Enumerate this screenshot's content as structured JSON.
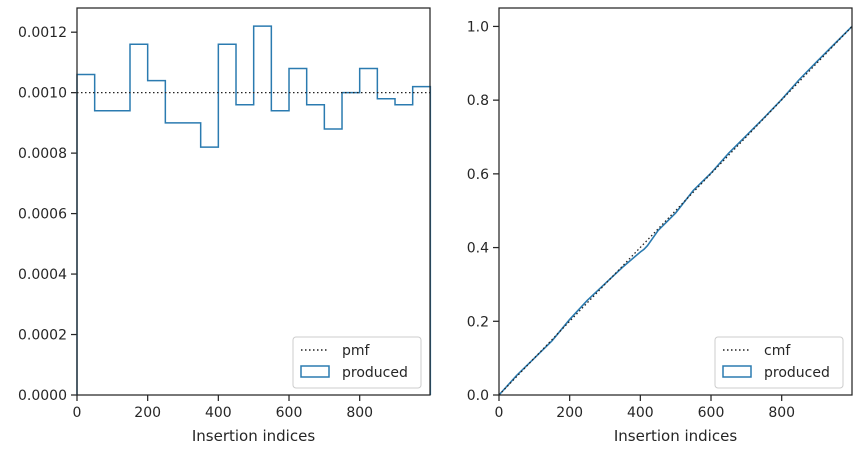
{
  "chart_data": [
    {
      "type": "step",
      "xlabel": "Insertion indices",
      "ylabel": "",
      "xlim": [
        0,
        999
      ],
      "ylim": [
        0,
        0.00128
      ],
      "xticks": [
        0,
        200,
        400,
        600,
        800
      ],
      "xtick_labels": [
        "0",
        "200",
        "400",
        "600",
        "800"
      ],
      "yticks": [
        0,
        0.0002,
        0.0004,
        0.0006,
        0.0008,
        0.001,
        0.0012
      ],
      "ytick_labels": [
        "0.0000",
        "0.0002",
        "0.0004",
        "0.0006",
        "0.0008",
        "0.0010",
        "0.0012"
      ],
      "legend_position": "lower-right",
      "grid": false,
      "series": [
        {
          "name": "pmf",
          "kind": "reference-line",
          "style": "dotted",
          "color": "#222222",
          "x": [
            0,
            999
          ],
          "y": [
            0.001,
            0.001
          ]
        },
        {
          "name": "produced",
          "kind": "histogram-step",
          "color": "#2b7bb0",
          "bin_edges": [
            0,
            50,
            100,
            150,
            200,
            250,
            300,
            350,
            400,
            450,
            500,
            550,
            600,
            650,
            700,
            750,
            800,
            850,
            900,
            950,
            1000
          ],
          "values": [
            0.00106,
            0.00094,
            0.00094,
            0.00116,
            0.00104,
            0.0009,
            0.0009,
            0.00082,
            0.00116,
            0.00096,
            0.00122,
            0.00094,
            0.00108,
            0.00096,
            0.00088,
            0.001,
            0.00108,
            0.00098,
            0.00096,
            0.00102
          ]
        }
      ]
    },
    {
      "type": "line",
      "xlabel": "Insertion indices",
      "ylabel": "",
      "xlim": [
        0,
        999
      ],
      "ylim": [
        0,
        1.05
      ],
      "xticks": [
        0,
        200,
        400,
        600,
        800
      ],
      "xtick_labels": [
        "0",
        "200",
        "400",
        "600",
        "800"
      ],
      "yticks": [
        0,
        0.2,
        0.4,
        0.6,
        0.8,
        1.0
      ],
      "ytick_labels": [
        "0.0",
        "0.2",
        "0.4",
        "0.6",
        "0.8",
        "1.0"
      ],
      "legend_position": "lower-right",
      "grid": false,
      "series": [
        {
          "name": "cmf",
          "kind": "reference-line",
          "style": "dotted",
          "color": "#222222",
          "x": [
            0,
            999
          ],
          "y": [
            0,
            1.0
          ]
        },
        {
          "name": "produced",
          "kind": "cumulative",
          "color": "#2b7bb0",
          "x": [
            0,
            50,
            100,
            150,
            200,
            250,
            300,
            350,
            400,
            410,
            420,
            450,
            500,
            550,
            600,
            650,
            700,
            750,
            800,
            850,
            900,
            950,
            999
          ],
          "y": [
            0,
            0.053,
            0.1,
            0.147,
            0.205,
            0.257,
            0.302,
            0.347,
            0.388,
            0.395,
            0.405,
            0.446,
            0.494,
            0.555,
            0.602,
            0.656,
            0.704,
            0.752,
            0.802,
            0.856,
            0.905,
            0.953,
            1.0
          ]
        }
      ]
    }
  ]
}
